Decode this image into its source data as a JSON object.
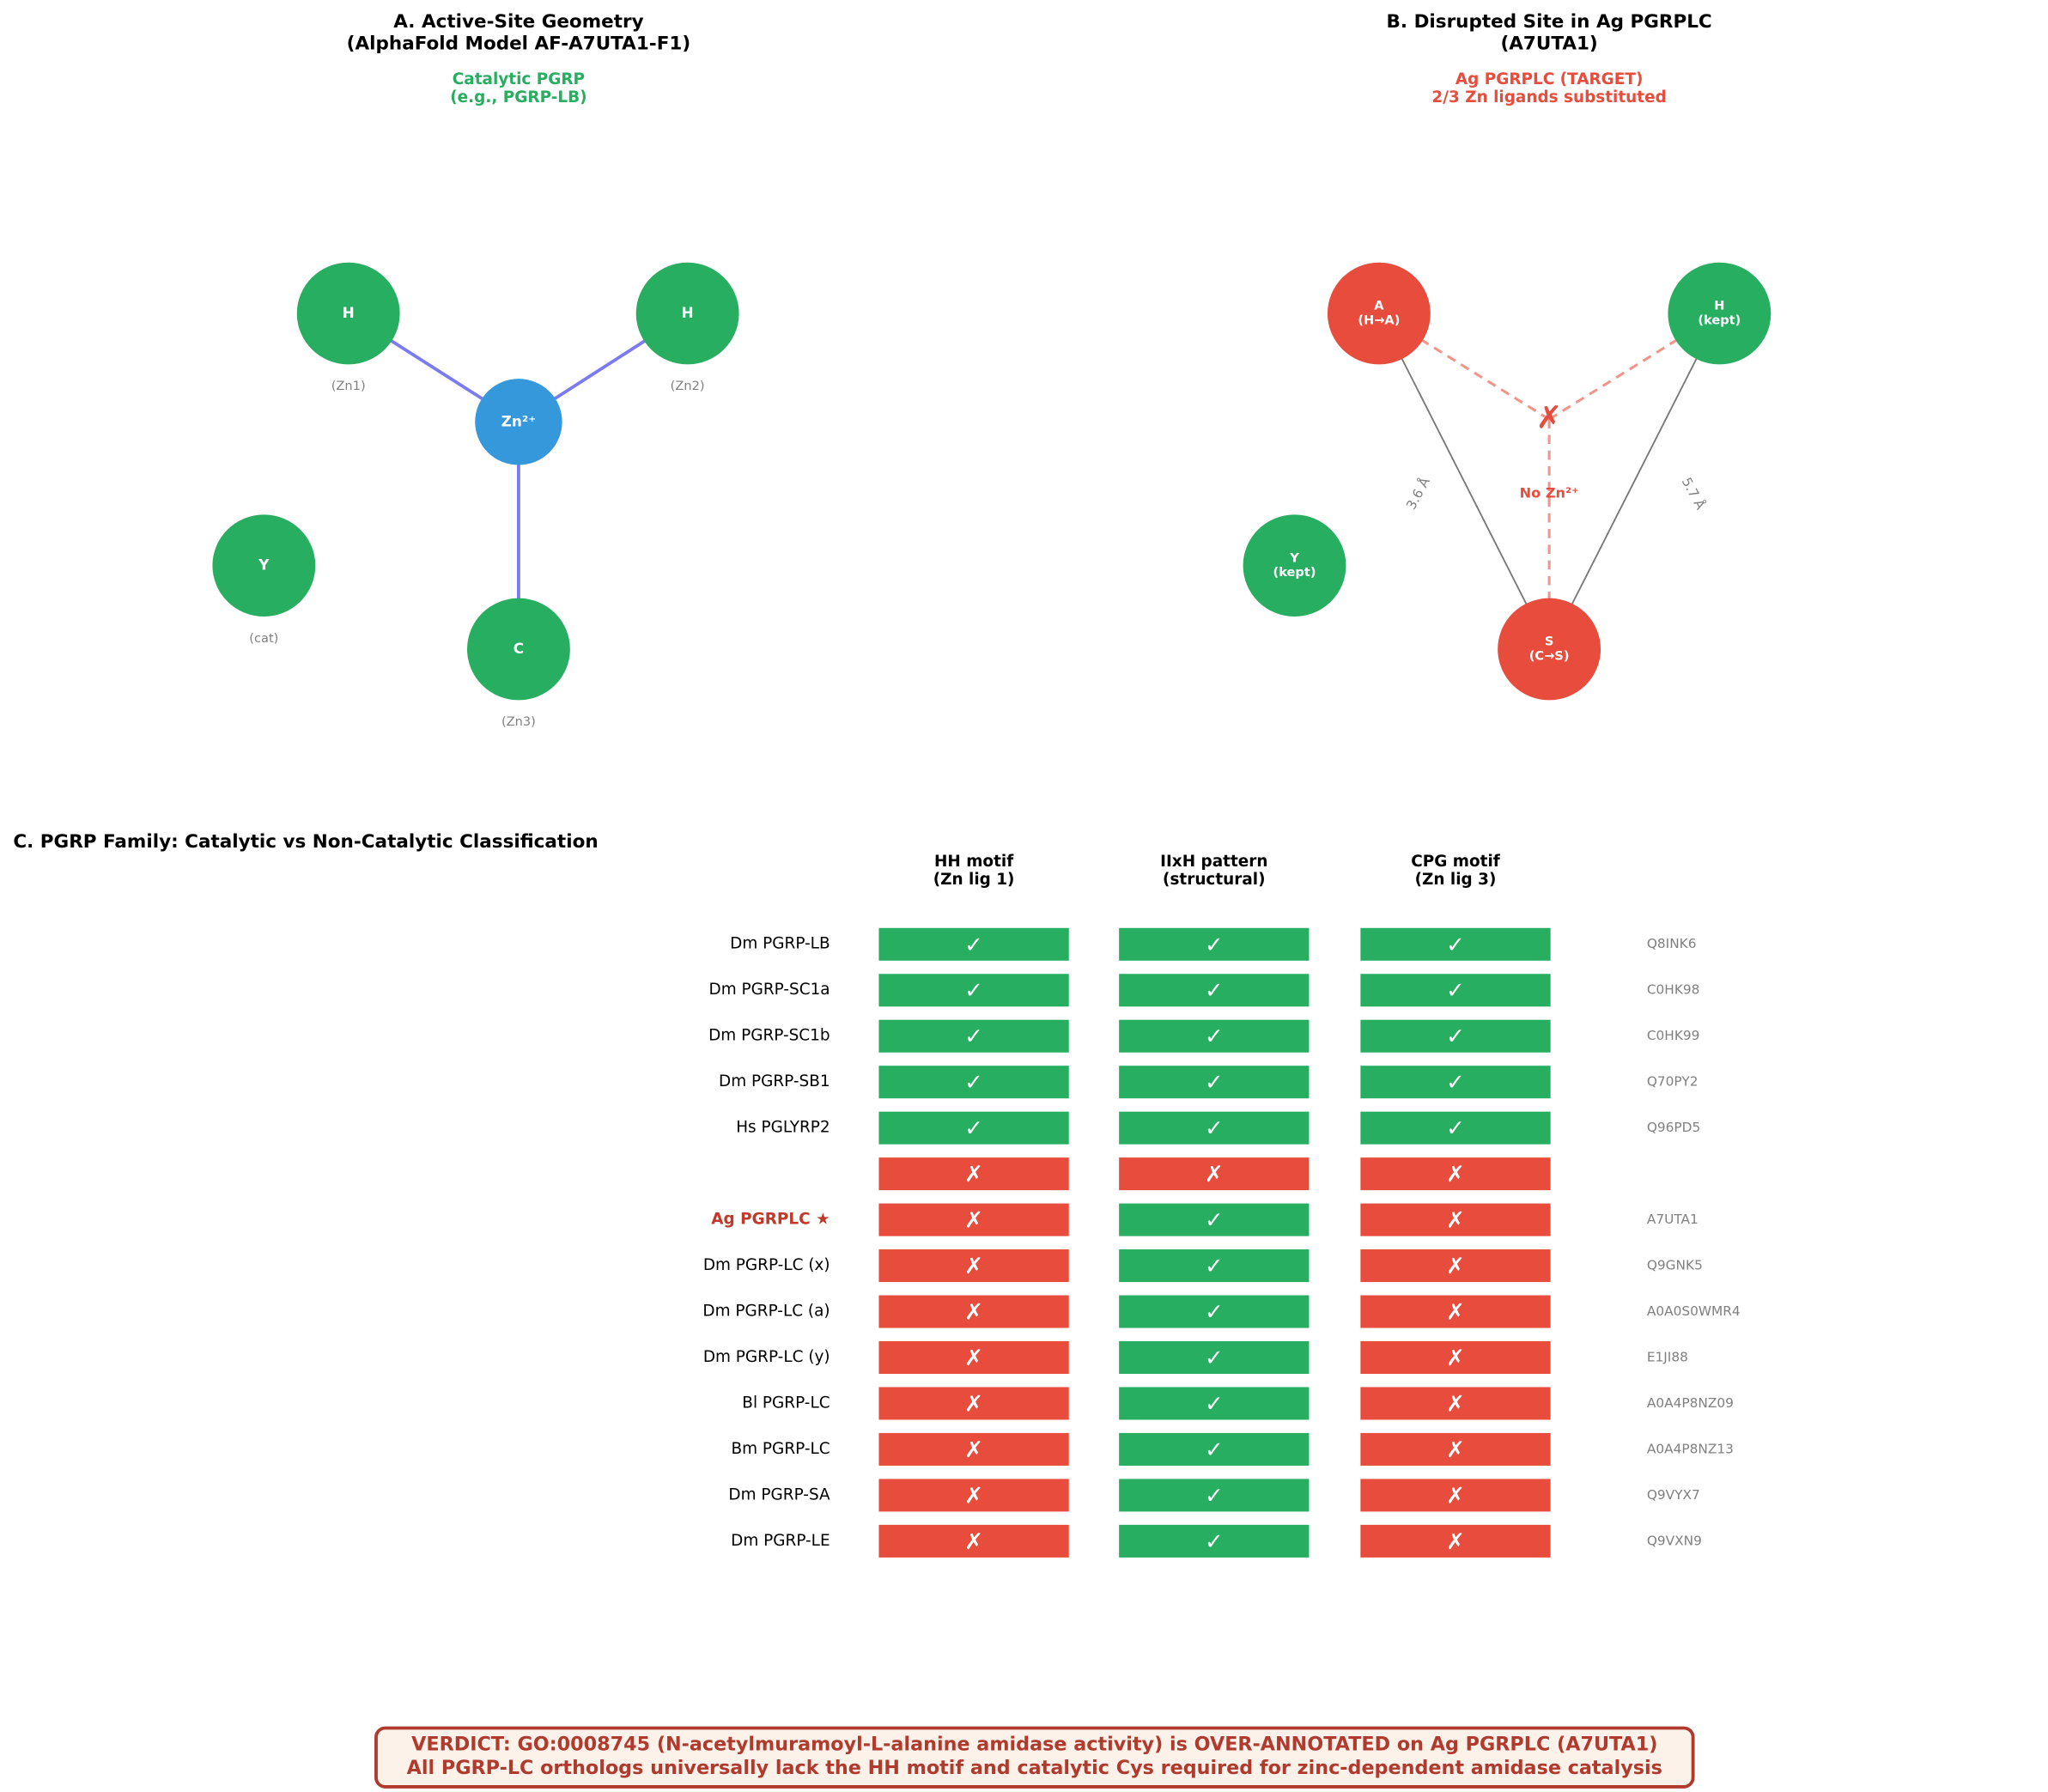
{
  "panel_a": {
    "title": [
      "A. Active-Site Geometry",
      "(AlphaFold Model AF-A7UTA1-F1)"
    ],
    "subtitle": [
      "Catalytic PGRP",
      "(e.g., PGRP-LB)"
    ],
    "nodes": [
      {
        "label": [
          "H"
        ],
        "sublabel": "(Zn1)",
        "color": "#27ae60"
      },
      {
        "label": [
          "H"
        ],
        "sublabel": "(Zn2)",
        "color": "#27ae60"
      },
      {
        "label": [
          "Zn²⁺"
        ],
        "color": "#3498db"
      },
      {
        "label": [
          "Y"
        ],
        "sublabel": "(cat)",
        "color": "#27ae60"
      },
      {
        "label": [
          "C"
        ],
        "sublabel": "(Zn3)",
        "color": "#27ae60"
      }
    ]
  },
  "panel_b": {
    "title": [
      "B. Disrupted Site in Ag PGRPLC",
      "(A7UTA1)"
    ],
    "subtitle": [
      "Ag PGRPLC (TARGET)",
      "2/3 Zn ligands substituted"
    ],
    "nodes": [
      {
        "label": [
          "A",
          "(H→A)"
        ],
        "color": "#e74c3c"
      },
      {
        "label": [
          "H",
          "(kept)"
        ],
        "color": "#27ae60"
      },
      {
        "label": [
          "Y",
          "(kept)"
        ],
        "color": "#27ae60"
      },
      {
        "label": [
          "S",
          "(C→S)"
        ],
        "color": "#e74c3c"
      }
    ],
    "missing_mark": "✗",
    "missing_label": "No Zn²⁺",
    "distances": [
      "3.6 Å",
      "5.7 Å"
    ]
  },
  "panel_c": {
    "title": "C. PGRP Family: Catalytic vs Non-Catalytic Classification",
    "columns": [
      [
        "HH motif",
        "(Zn lig 1)"
      ],
      [
        "IIxH pattern",
        "(structural)"
      ],
      [
        "CPG motif",
        "(Zn lig 3)"
      ]
    ],
    "cell_colors": {
      "✓": "#27ae60",
      "✗": "#e74c3c"
    },
    "rows": [
      {
        "name": "Dm PGRP-LB",
        "cells": [
          "✓",
          "✓",
          "✓"
        ],
        "id": "Q8INK6"
      },
      {
        "name": "Dm PGRP-SC1a",
        "cells": [
          "✓",
          "✓",
          "✓"
        ],
        "id": "C0HK98"
      },
      {
        "name": "Dm PGRP-SC1b",
        "cells": [
          "✓",
          "✓",
          "✓"
        ],
        "id": "C0HK99"
      },
      {
        "name": "Dm PGRP-SB1",
        "cells": [
          "✓",
          "✓",
          "✓"
        ],
        "id": "Q70PY2"
      },
      {
        "name": "Hs PGLYRP2",
        "cells": [
          "✓",
          "✓",
          "✓"
        ],
        "id": "Q96PD5"
      },
      {
        "name": null,
        "cells": [
          "✗",
          "✗",
          "✗"
        ],
        "id": null
      },
      {
        "name": "Ag PGRPLC ★",
        "cells": [
          "✗",
          "✓",
          "✗"
        ],
        "id": "A7UTA1",
        "name_color": "#c0392b"
      },
      {
        "name": "Dm PGRP-LC (x)",
        "cells": [
          "✗",
          "✓",
          "✗"
        ],
        "id": "Q9GNK5"
      },
      {
        "name": "Dm PGRP-LC (a)",
        "cells": [
          "✗",
          "✓",
          "✗"
        ],
        "id": "A0A0S0WMR4"
      },
      {
        "name": "Dm PGRP-LC (y)",
        "cells": [
          "✗",
          "✓",
          "✗"
        ],
        "id": "E1JI88"
      },
      {
        "name": "Bl PGRP-LC",
        "cells": [
          "✗",
          "✓",
          "✗"
        ],
        "id": "A0A4P8NZ09"
      },
      {
        "name": "Bm PGRP-LC",
        "cells": [
          "✗",
          "✓",
          "✗"
        ],
        "id": "A0A4P8NZ13"
      },
      {
        "name": "Dm PGRP-SA",
        "cells": [
          "✗",
          "✓",
          "✗"
        ],
        "id": "Q9VYX7"
      },
      {
        "name": "Dm PGRP-LE",
        "cells": [
          "✗",
          "✓",
          "✗"
        ],
        "id": "Q9VXN9"
      }
    ]
  },
  "verdict": [
    "VERDICT: GO:0008745 (N-acetylmuramoyl-L-alanine amidase activity) is OVER-ANNOTATED on Ag PGRPLC (A7UTA1)",
    "All PGRP-LC orthologs universally lack the HH motif and catalytic Cys required for zinc-dependent amidase catalysis"
  ]
}
